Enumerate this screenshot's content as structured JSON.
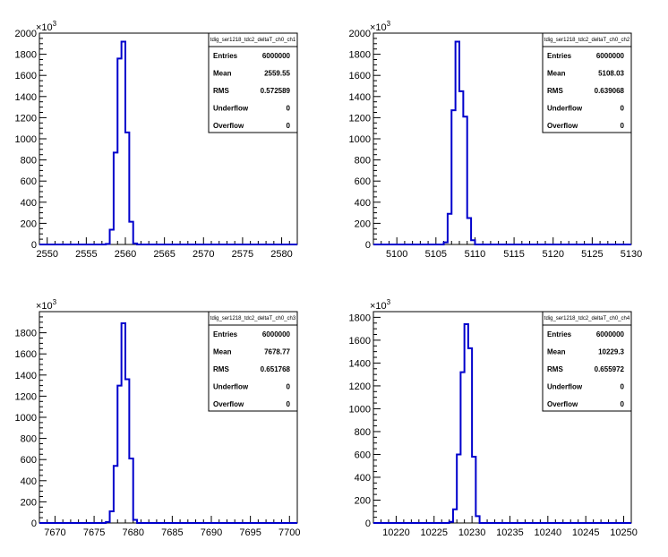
{
  "chart_data": [
    {
      "type": "bar",
      "title": "",
      "xlabel": "",
      "ylabel": "",
      "y_multiplier_label": "×10",
      "y_multiplier_exponent": "3",
      "xlim": [
        2549,
        2582
      ],
      "ylim": [
        0,
        2000
      ],
      "x_ticks": [
        2550,
        2555,
        2560,
        2565,
        2570,
        2575,
        2580
      ],
      "y_ticks": [
        0,
        200,
        400,
        600,
        800,
        1000,
        1200,
        1400,
        1600,
        1800,
        2000
      ],
      "bin_width": 0.5,
      "bins": [
        [
          2557.5,
          5
        ],
        [
          2558.0,
          140
        ],
        [
          2558.5,
          870
        ],
        [
          2559.0,
          1760
        ],
        [
          2559.5,
          1920
        ],
        [
          2560.0,
          1060
        ],
        [
          2560.5,
          215
        ],
        [
          2561.0,
          10
        ]
      ],
      "color": "#0000cc",
      "legend": {
        "name": "tdig_ser1218_tdc2_deltaT_ch0_ch1",
        "rows": [
          {
            "label": "Entries",
            "value": "6000000"
          },
          {
            "label": "Mean",
            "value": "2559.55"
          },
          {
            "label": "RMS",
            "value": "0.572589"
          },
          {
            "label": "Underflow",
            "value": "0"
          },
          {
            "label": "Overflow",
            "value": "0"
          }
        ]
      }
    },
    {
      "type": "bar",
      "title": "",
      "xlabel": "",
      "ylabel": "",
      "y_multiplier_label": "×10",
      "y_multiplier_exponent": "3",
      "xlim": [
        5097,
        5130
      ],
      "ylim": [
        0,
        2000
      ],
      "x_ticks": [
        5100,
        5105,
        5110,
        5115,
        5120,
        5125,
        5130
      ],
      "y_ticks": [
        0,
        200,
        400,
        600,
        800,
        1000,
        1200,
        1400,
        1600,
        1800,
        2000
      ],
      "bin_width": 0.5,
      "bins": [
        [
          5106.0,
          20
        ],
        [
          5106.5,
          290
        ],
        [
          5107.0,
          1270
        ],
        [
          5107.5,
          1920
        ],
        [
          5108.0,
          1450
        ],
        [
          5108.5,
          1210
        ],
        [
          5109.0,
          250
        ],
        [
          5109.5,
          40
        ]
      ],
      "color": "#0000cc",
      "legend": {
        "name": "tdig_ser1218_tdc2_deltaT_ch0_ch2",
        "rows": [
          {
            "label": "Entries",
            "value": "6000000"
          },
          {
            "label": "Mean",
            "value": "5108.03"
          },
          {
            "label": "RMS",
            "value": "0.639068"
          },
          {
            "label": "Underflow",
            "value": "0"
          },
          {
            "label": "Overflow",
            "value": "0"
          }
        ]
      }
    },
    {
      "type": "bar",
      "title": "",
      "xlabel": "",
      "ylabel": "",
      "y_multiplier_label": "×10",
      "y_multiplier_exponent": "3",
      "xlim": [
        7668,
        7701
      ],
      "ylim": [
        0,
        2000
      ],
      "x_ticks": [
        7670,
        7675,
        7680,
        7685,
        7690,
        7695,
        7700
      ],
      "y_ticks": [
        0,
        200,
        400,
        600,
        800,
        1000,
        1200,
        1400,
        1600,
        1800
      ],
      "bin_width": 0.5,
      "bins": [
        [
          7676.5,
          10
        ],
        [
          7677.0,
          110
        ],
        [
          7677.5,
          540
        ],
        [
          7678.0,
          1300
        ],
        [
          7678.5,
          1890
        ],
        [
          7679.0,
          1360
        ],
        [
          7679.5,
          610
        ],
        [
          7680.0,
          30
        ]
      ],
      "color": "#0000cc",
      "legend": {
        "name": "tdig_ser1218_tdc2_deltaT_ch0_ch3",
        "rows": [
          {
            "label": "Entries",
            "value": "6000000"
          },
          {
            "label": "Mean",
            "value": "7678.77"
          },
          {
            "label": "RMS",
            "value": "0.651768"
          },
          {
            "label": "Underflow",
            "value": "0"
          },
          {
            "label": "Overflow",
            "value": "0"
          }
        ]
      }
    },
    {
      "type": "bar",
      "title": "",
      "xlabel": "",
      "ylabel": "",
      "y_multiplier_label": "×10",
      "y_multiplier_exponent": "3",
      "xlim": [
        10217,
        10251
      ],
      "ylim": [
        0,
        1850
      ],
      "x_ticks": [
        10220,
        10225,
        10230,
        10235,
        10240,
        10245,
        10250
      ],
      "y_ticks": [
        0,
        200,
        400,
        600,
        800,
        1000,
        1200,
        1400,
        1600,
        1800
      ],
      "bin_width": 0.5,
      "bins": [
        [
          10227.0,
          10
        ],
        [
          10227.5,
          120
        ],
        [
          10228.0,
          600
        ],
        [
          10228.5,
          1320
        ],
        [
          10229.0,
          1740
        ],
        [
          10229.5,
          1530
        ],
        [
          10230.0,
          580
        ],
        [
          10230.5,
          60
        ]
      ],
      "color": "#0000cc",
      "legend": {
        "name": "tdig_ser1218_tdc2_deltaT_ch0_ch4",
        "rows": [
          {
            "label": "Entries",
            "value": "6000000"
          },
          {
            "label": "Mean",
            "value": "10229.3"
          },
          {
            "label": "RMS",
            "value": "0.655972"
          },
          {
            "label": "Underflow",
            "value": "0"
          },
          {
            "label": "Overflow",
            "value": "0"
          }
        ]
      }
    }
  ]
}
